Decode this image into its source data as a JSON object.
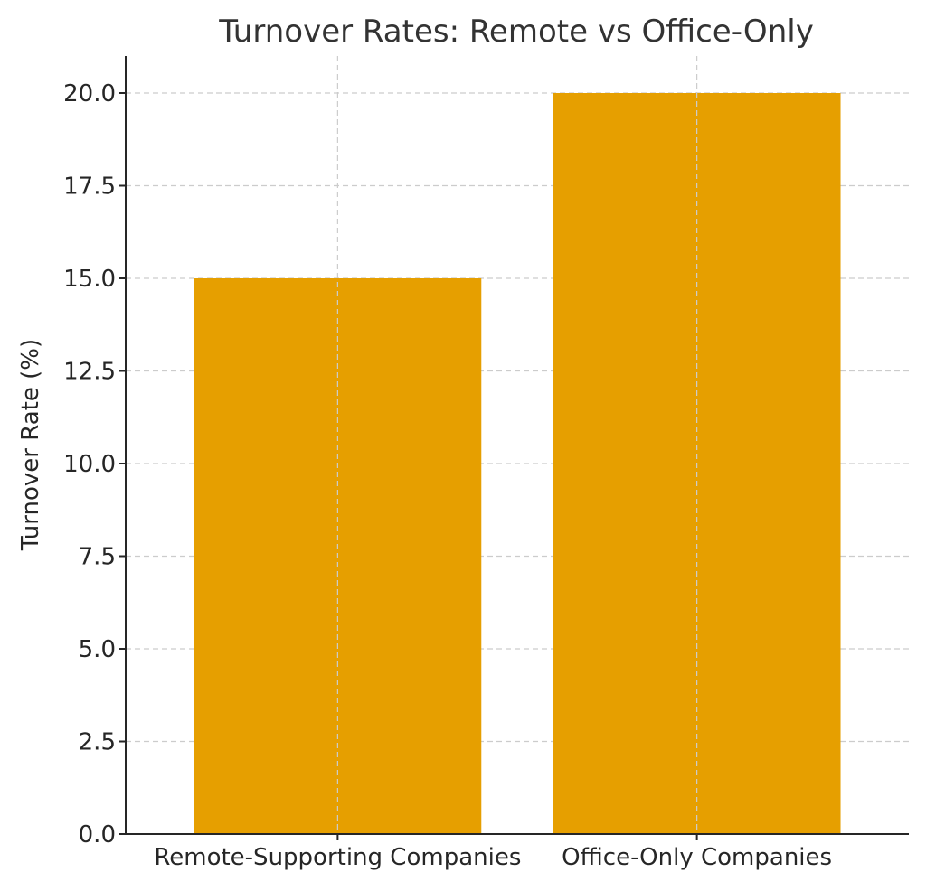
{
  "chart_data": {
    "type": "bar",
    "title": "Turnover Rates: Remote vs Office-Only",
    "xlabel": "",
    "ylabel": "Turnover Rate (%)",
    "categories": [
      "Remote-Supporting Companies",
      "Office-Only Companies"
    ],
    "values": [
      15,
      20
    ],
    "ylim": [
      0,
      21
    ],
    "yticks": [
      0.0,
      2.5,
      5.0,
      7.5,
      10.0,
      12.5,
      15.0,
      17.5,
      20.0
    ],
    "ytick_labels": [
      "0.0",
      "2.5",
      "5.0",
      "7.5",
      "10.0",
      "12.5",
      "15.0",
      "17.5",
      "20.0"
    ],
    "grid": true,
    "bar_color": "#e69f00"
  }
}
